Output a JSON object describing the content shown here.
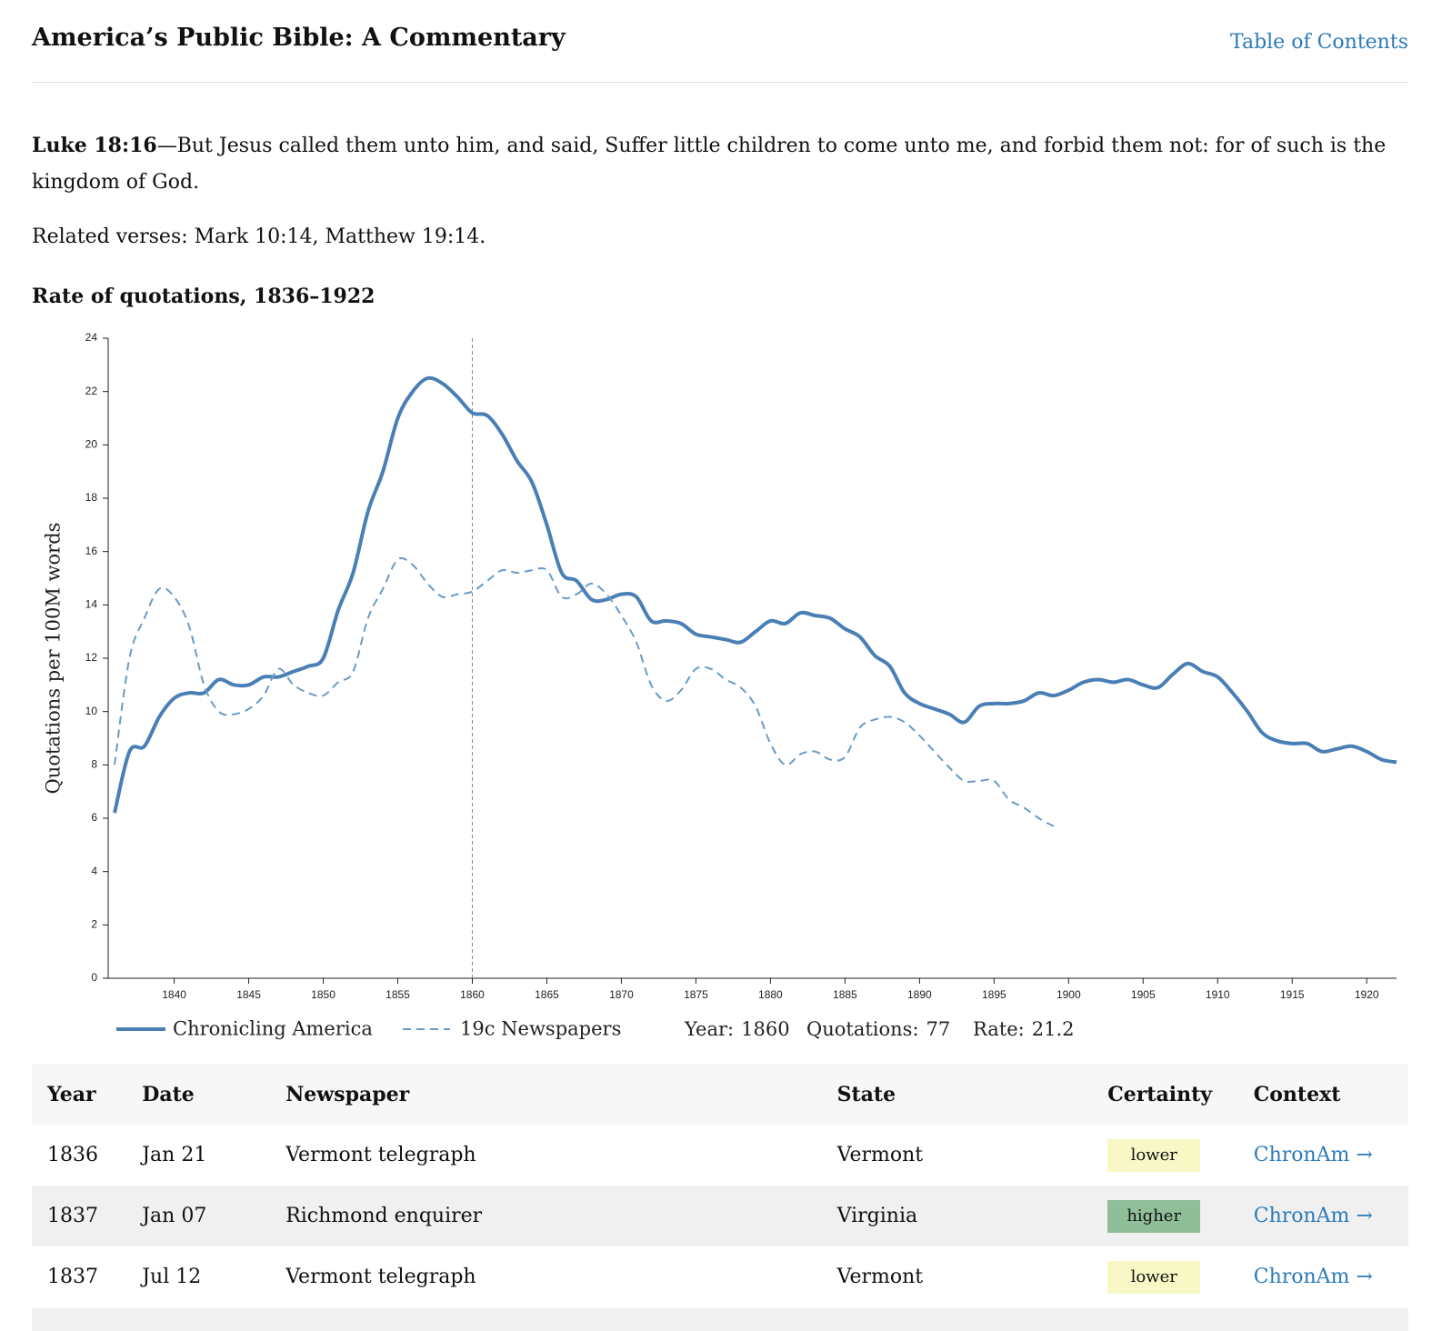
{
  "header": {
    "title": "America’s Public Bible: A Commentary",
    "toc": "Table of Contents"
  },
  "verse": {
    "reference": "Luke 18:16",
    "text": "—But Jesus called them unto him, and said, Suffer little children to come unto me, and forbid them not: for of such is the kingdom of God."
  },
  "related": "Related verses: Mark 10:14, Matthew 19:14.",
  "chart_data": {
    "type": "line",
    "title": "Rate of quotations, 1836–1922",
    "y_label": "Quotations per 100M words",
    "x": [
      1836,
      1837,
      1838,
      1839,
      1840,
      1841,
      1842,
      1843,
      1844,
      1845,
      1846,
      1847,
      1848,
      1849,
      1850,
      1851,
      1852,
      1853,
      1854,
      1855,
      1856,
      1857,
      1858,
      1859,
      1860,
      1861,
      1862,
      1863,
      1864,
      1865,
      1866,
      1867,
      1868,
      1869,
      1870,
      1871,
      1872,
      1873,
      1874,
      1875,
      1876,
      1877,
      1878,
      1879,
      1880,
      1881,
      1882,
      1883,
      1884,
      1885,
      1886,
      1887,
      1888,
      1889,
      1890,
      1891,
      1892,
      1893,
      1894,
      1895,
      1896,
      1897,
      1898,
      1899,
      1900,
      1901,
      1902,
      1903,
      1904,
      1905,
      1906,
      1907,
      1908,
      1909,
      1910,
      1911,
      1912,
      1913,
      1914,
      1915,
      1916,
      1917,
      1918,
      1919,
      1920,
      1921,
      1922
    ],
    "series": [
      {
        "name": "Chronicling America",
        "color": "#4a7fb5",
        "style": "solid",
        "values": [
          6.2,
          8.5,
          8.7,
          9.8,
          10.5,
          10.7,
          10.7,
          11.2,
          11.0,
          11.0,
          11.3,
          11.3,
          11.5,
          11.7,
          12.0,
          13.8,
          15.2,
          17.5,
          19.0,
          21.0,
          22.0,
          22.5,
          22.3,
          21.8,
          21.2,
          21.1,
          20.4,
          19.4,
          18.6,
          17.0,
          15.2,
          14.9,
          14.2,
          14.2,
          14.4,
          14.3,
          13.4,
          13.4,
          13.3,
          12.9,
          12.8,
          12.7,
          12.6,
          13.0,
          13.4,
          13.3,
          13.7,
          13.6,
          13.5,
          13.1,
          12.8,
          12.1,
          11.7,
          10.7,
          10.3,
          10.1,
          9.9,
          9.6,
          10.2,
          10.3,
          10.3,
          10.4,
          10.7,
          10.6,
          10.8,
          11.1,
          11.2,
          11.1,
          11.2,
          11.0,
          10.9,
          11.4,
          11.8,
          11.5,
          11.3,
          10.7,
          10.0,
          9.2,
          8.9,
          8.8,
          8.8,
          8.5,
          8.6,
          8.7,
          8.5,
          8.2,
          8.1
        ]
      },
      {
        "name": "19c Newspapers",
        "color": "#6a9ac7",
        "style": "dashed",
        "values": [
          8.0,
          12.0,
          13.5,
          14.6,
          14.3,
          13.2,
          11.0,
          10.0,
          9.9,
          10.1,
          10.6,
          11.6,
          11.0,
          10.7,
          10.6,
          11.1,
          11.5,
          13.5,
          14.6,
          15.7,
          15.5,
          14.8,
          14.3,
          14.4,
          14.5,
          14.9,
          15.3,
          15.2,
          15.3,
          15.3,
          14.3,
          14.4,
          14.8,
          14.4,
          13.6,
          12.6,
          11.0,
          10.4,
          10.8,
          11.6,
          11.6,
          11.2,
          10.9,
          10.2,
          8.8,
          8.0,
          8.4,
          8.5,
          8.2,
          8.3,
          9.4,
          9.7,
          9.8,
          9.6,
          9.1,
          8.5,
          7.9,
          7.4,
          7.4,
          7.4,
          6.7,
          6.4,
          6.0,
          5.7,
          null,
          null,
          null,
          null,
          null,
          null,
          null,
          null,
          null,
          null,
          null,
          null,
          null,
          null,
          null,
          null,
          null,
          null,
          null,
          null,
          null,
          null,
          null
        ]
      }
    ],
    "xlim": [
      1836,
      1922
    ],
    "xticks": [
      1840,
      1845,
      1850,
      1855,
      1860,
      1865,
      1870,
      1875,
      1880,
      1885,
      1890,
      1895,
      1900,
      1905,
      1910,
      1915,
      1920
    ],
    "ylim": [
      0,
      24
    ],
    "yticks": [
      0,
      2,
      4,
      6,
      8,
      10,
      12,
      14,
      16,
      18,
      20,
      22,
      24
    ],
    "grid": false,
    "readout": {
      "year_label": "Year:",
      "year": 1860,
      "quotations_label": "Quotations:",
      "quotations": 77,
      "rate_label": "Rate:",
      "rate": 21.2
    }
  },
  "table": {
    "headers": [
      "Year",
      "Date",
      "Newspaper",
      "State",
      "Certainty",
      "Context"
    ],
    "certainty_colors": {
      "lower": "#f8f8c6",
      "higher": "#8fbe98"
    },
    "rows": [
      [
        1836,
        "Jan 21",
        "Vermont telegraph",
        "Vermont",
        "lower",
        "ChronAm →"
      ],
      [
        1837,
        "Jan 07",
        "Richmond enquirer",
        "Virginia",
        "higher",
        "ChronAm →"
      ],
      [
        1837,
        "Jul 12",
        "Vermont telegraph",
        "Vermont",
        "lower",
        "ChronAm →"
      ]
    ]
  }
}
